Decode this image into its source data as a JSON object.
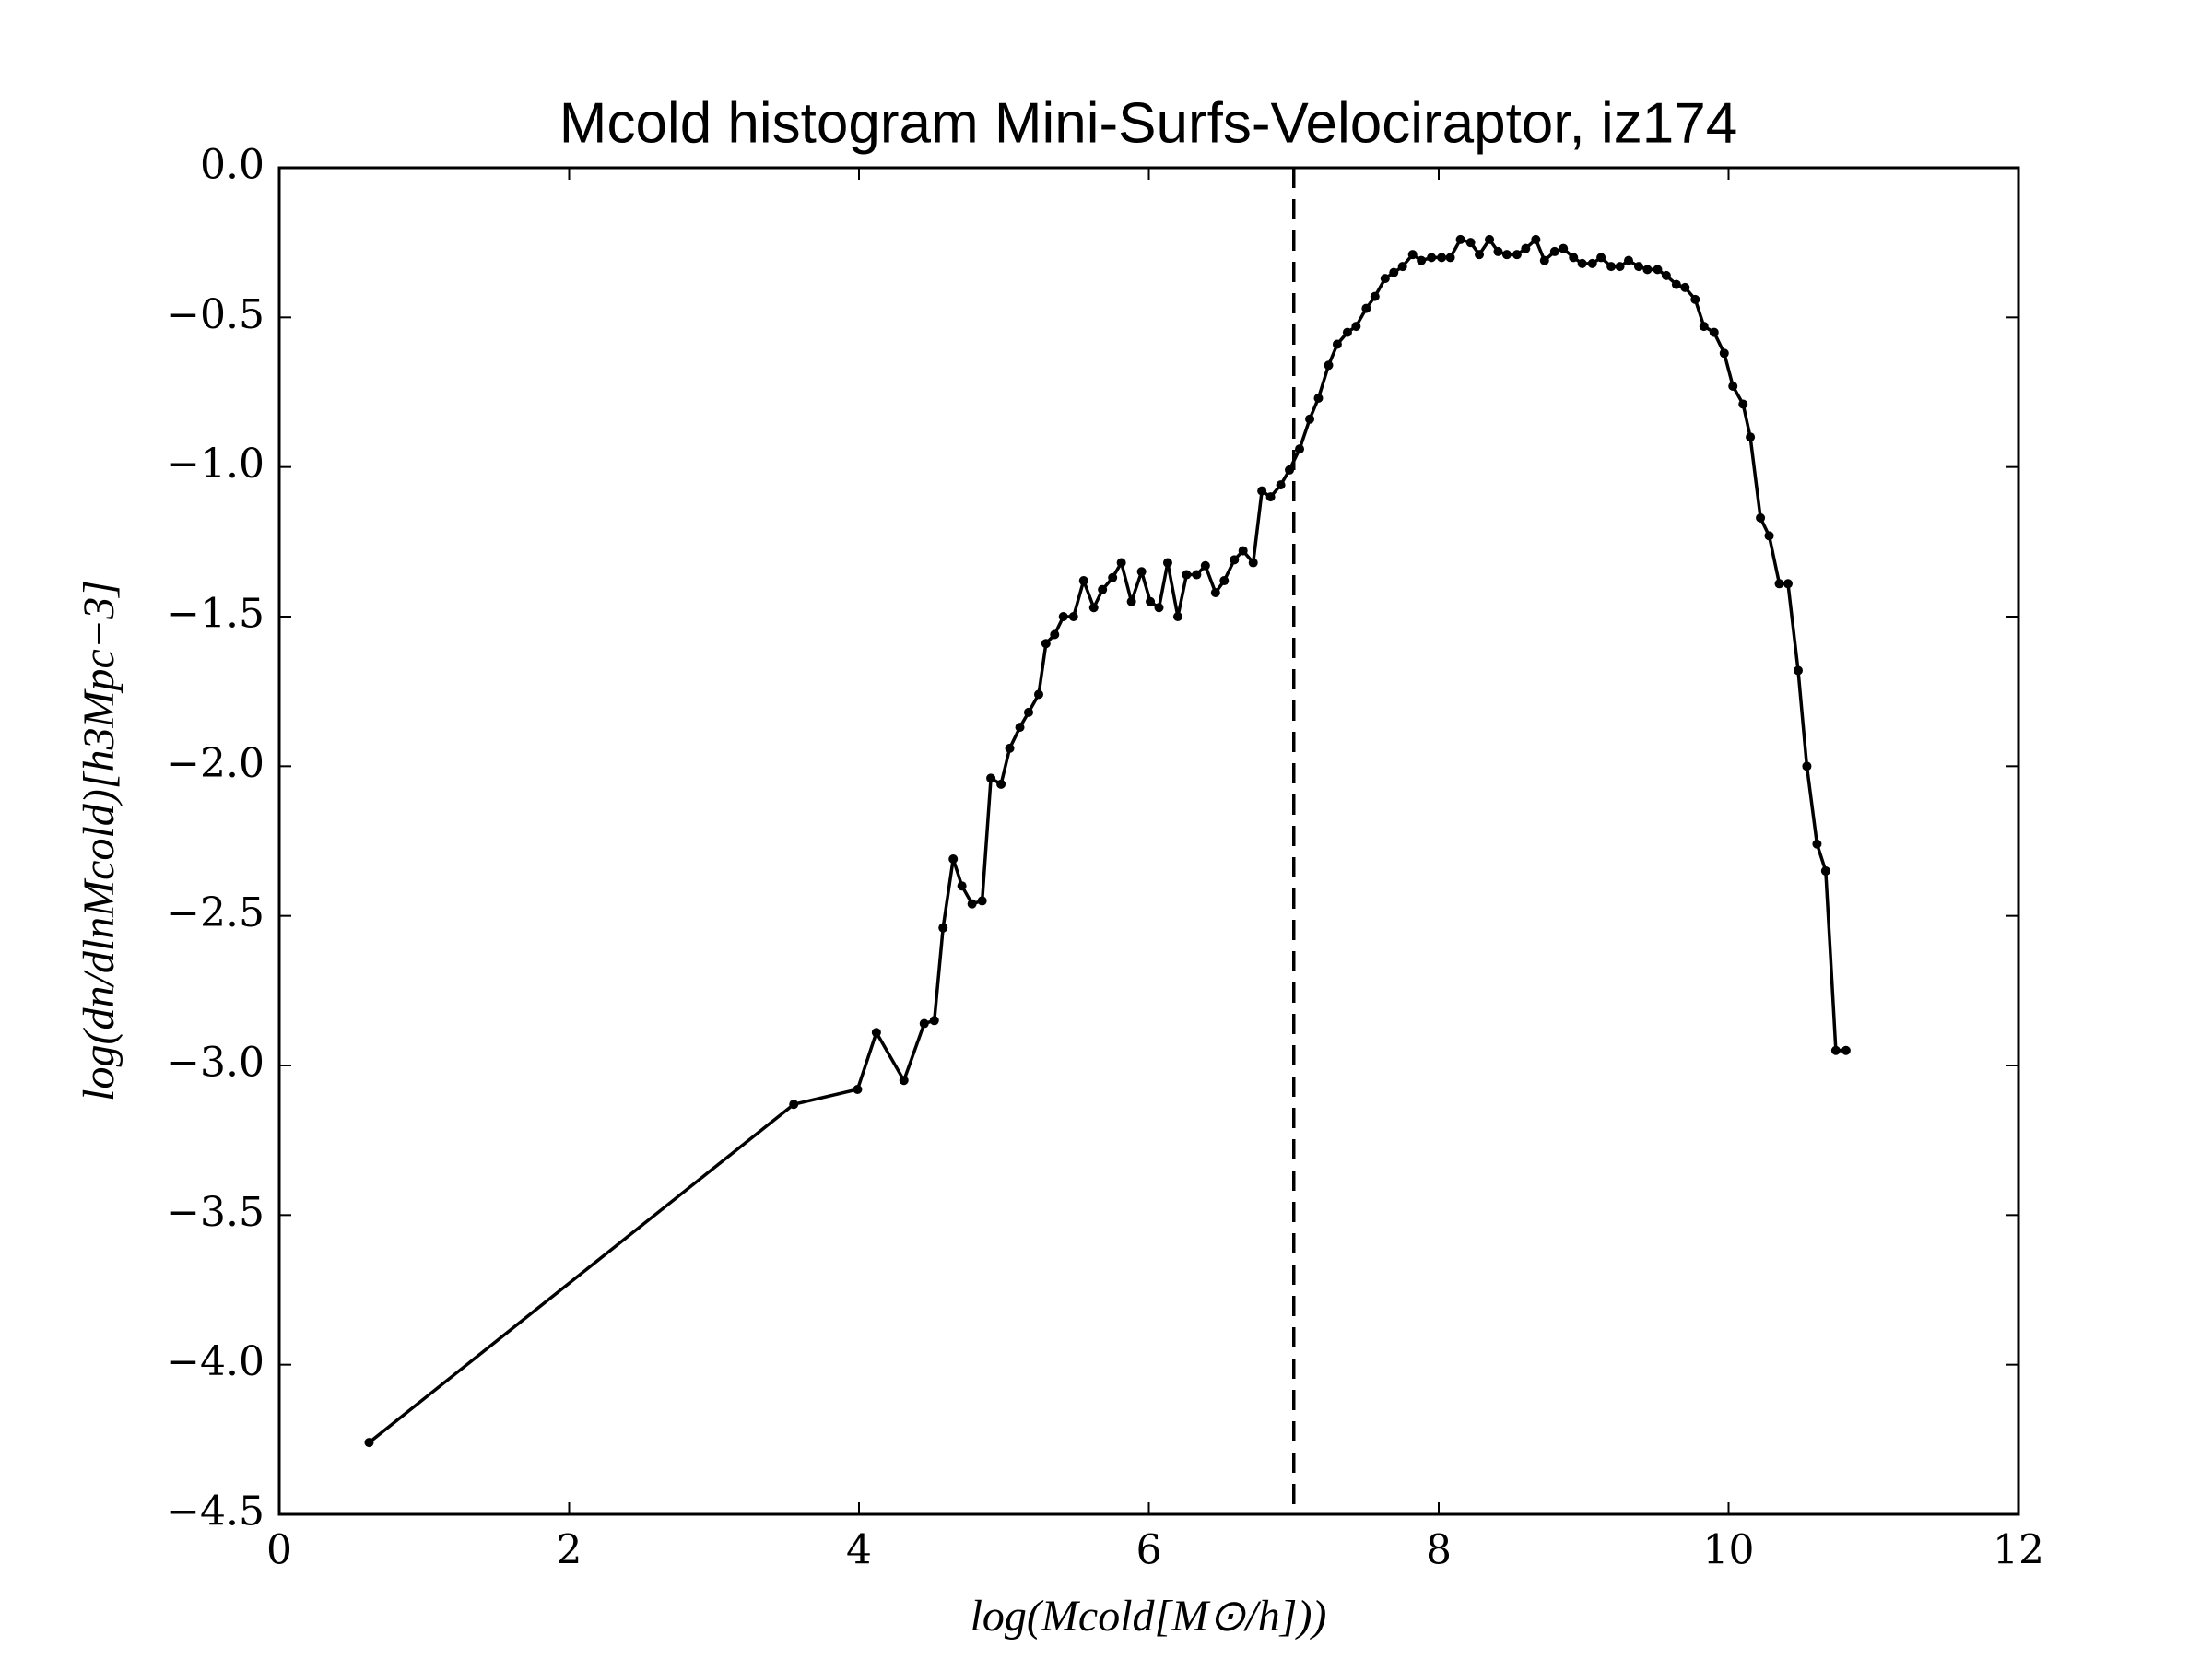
{
  "chart_data": {
    "type": "line",
    "title": "Mcold histogram Mini-Surfs-Velociraptor, iz174",
    "xlabel": "log(Mcold[M⊙/h]))",
    "ylabel": "log(dn/dlnMcold)[h3Mpc−3]",
    "x": [
      0.62,
      3.55,
      3.99,
      4.12,
      4.31,
      4.45,
      4.52,
      4.58,
      4.65,
      4.71,
      4.78,
      4.85,
      4.91,
      4.98,
      5.04,
      5.11,
      5.17,
      5.24,
      5.29,
      5.35,
      5.41,
      5.48,
      5.55,
      5.62,
      5.68,
      5.75,
      5.81,
      5.88,
      5.95,
      6.01,
      6.07,
      6.13,
      6.2,
      6.26,
      6.33,
      6.39,
      6.46,
      6.52,
      6.59,
      6.65,
      6.72,
      6.78,
      6.84,
      6.91,
      6.97,
      7.04,
      7.11,
      7.17,
      7.24,
      7.3,
      7.37,
      7.43,
      7.5,
      7.56,
      7.63,
      7.69,
      7.75,
      7.82,
      7.88,
      7.95,
      8.02,
      8.08,
      8.15,
      8.22,
      8.28,
      8.35,
      8.41,
      8.47,
      8.54,
      8.6,
      8.67,
      8.73,
      8.8,
      8.86,
      8.93,
      8.99,
      9.06,
      9.12,
      9.19,
      9.25,
      9.31,
      9.38,
      9.44,
      9.51,
      9.57,
      9.64,
      9.7,
      9.77,
      9.83,
      9.9,
      9.97,
      10.03,
      10.1,
      10.15,
      10.22,
      10.28,
      10.35,
      10.41,
      10.48,
      10.54,
      10.61,
      10.67,
      10.74,
      10.81
    ],
    "series": [
      {
        "color": "#000000",
        "values": [
          -4.26,
          -3.13,
          -3.08,
          -2.89,
          -3.05,
          -2.86,
          -2.85,
          -2.54,
          -2.31,
          -2.4,
          -2.46,
          -2.45,
          -2.04,
          -2.06,
          -1.94,
          -1.87,
          -1.82,
          -1.76,
          -1.59,
          -1.56,
          -1.5,
          -1.5,
          -1.38,
          -1.47,
          -1.41,
          -1.37,
          -1.32,
          -1.45,
          -1.35,
          -1.45,
          -1.47,
          -1.32,
          -1.5,
          -1.36,
          -1.36,
          -1.33,
          -1.42,
          -1.38,
          -1.31,
          -1.28,
          -1.32,
          -1.08,
          -1.1,
          -1.06,
          -1.01,
          -0.94,
          -0.84,
          -0.77,
          -0.66,
          -0.59,
          -0.55,
          -0.53,
          -0.47,
          -0.43,
          -0.37,
          -0.35,
          -0.33,
          -0.29,
          -0.31,
          -0.3,
          -0.3,
          -0.3,
          -0.24,
          -0.25,
          -0.29,
          -0.24,
          -0.28,
          -0.29,
          -0.29,
          -0.27,
          -0.24,
          -0.31,
          -0.28,
          -0.27,
          -0.3,
          -0.32,
          -0.32,
          -0.3,
          -0.33,
          -0.33,
          -0.31,
          -0.33,
          -0.34,
          -0.34,
          -0.36,
          -0.39,
          -0.4,
          -0.44,
          -0.53,
          -0.55,
          -0.62,
          -0.73,
          -0.79,
          -0.9,
          -1.17,
          -1.23,
          -1.39,
          -1.39,
          -1.68,
          -2.0,
          -2.26,
          -2.35,
          -2.95,
          -2.95
        ]
      }
    ],
    "vline": {
      "x": 7,
      "style": "dashed",
      "color": "#000000"
    },
    "xlim": [
      0,
      12
    ],
    "xticks": [
      0,
      2,
      4,
      6,
      8,
      10,
      12
    ],
    "ylim": [
      -4.5,
      0
    ],
    "yticks": [
      {
        "value": 0,
        "label": "0.0"
      },
      {
        "value": -0.5,
        "label": "−0.5"
      },
      {
        "value": -1,
        "label": "−1.0"
      },
      {
        "value": -1.5,
        "label": "−1.5"
      },
      {
        "value": -2,
        "label": "−2.0"
      },
      {
        "value": -2.5,
        "label": "−2.5"
      },
      {
        "value": -3,
        "label": "−3.0"
      },
      {
        "value": -3.5,
        "label": "−3.5"
      },
      {
        "value": -4,
        "label": "−4.0"
      },
      {
        "value": -4.5,
        "label": "−4.5"
      }
    ],
    "grid": false
  }
}
